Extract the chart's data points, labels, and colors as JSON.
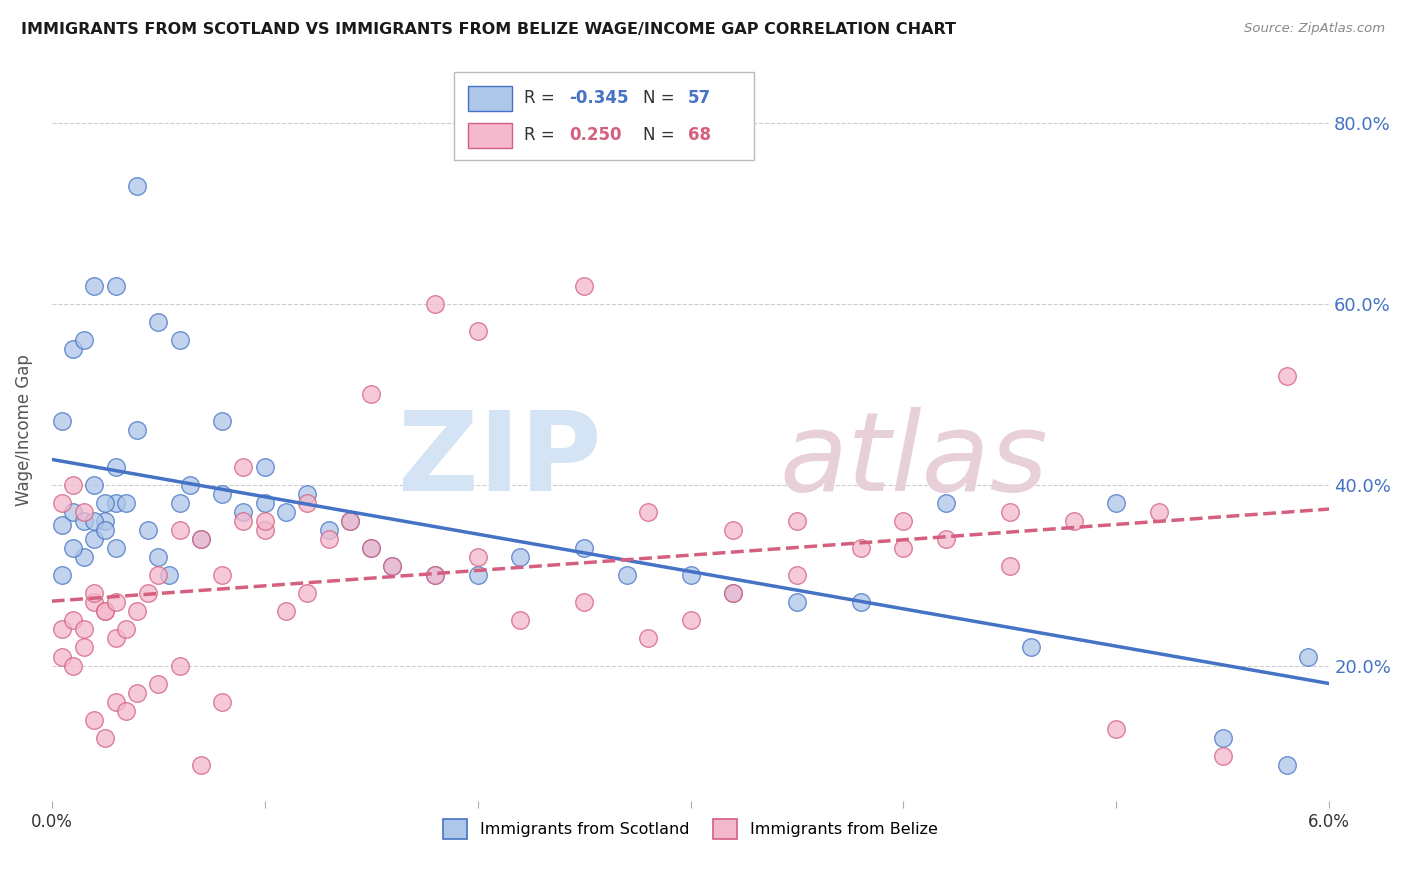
{
  "title": "IMMIGRANTS FROM SCOTLAND VS IMMIGRANTS FROM BELIZE WAGE/INCOME GAP CORRELATION CHART",
  "source": "Source: ZipAtlas.com",
  "ylabel": "Wage/Income Gap",
  "yticks": [
    0.2,
    0.4,
    0.6,
    0.8
  ],
  "ytick_labels": [
    "20.0%",
    "40.0%",
    "60.0%",
    "80.0%"
  ],
  "xmin": 0.0,
  "xmax": 0.06,
  "ymin": 0.05,
  "ymax": 0.87,
  "legend_scotland_R": "-0.345",
  "legend_scotland_N": "57",
  "legend_belize_R": "0.250",
  "legend_belize_N": "68",
  "scotland_color": "#aec6e8",
  "belize_color": "#f4b8cc",
  "scotland_line_color": "#4472c4",
  "belize_line_color": "#d45f7f",
  "scotland_x": [
    0.0005,
    0.001,
    0.0015,
    0.002,
    0.0025,
    0.003,
    0.0005,
    0.001,
    0.0015,
    0.002,
    0.0025,
    0.003,
    0.0005,
    0.001,
    0.0015,
    0.002,
    0.0025,
    0.003,
    0.0035,
    0.004,
    0.0045,
    0.005,
    0.0055,
    0.006,
    0.0065,
    0.007,
    0.008,
    0.009,
    0.01,
    0.011,
    0.012,
    0.013,
    0.014,
    0.015,
    0.016,
    0.018,
    0.02,
    0.022,
    0.025,
    0.027,
    0.03,
    0.032,
    0.035,
    0.038,
    0.042,
    0.046,
    0.05,
    0.055,
    0.058,
    0.059,
    0.002,
    0.003,
    0.004,
    0.005,
    0.006,
    0.008,
    0.01
  ],
  "scotland_y": [
    0.355,
    0.37,
    0.32,
    0.34,
    0.36,
    0.38,
    0.3,
    0.33,
    0.36,
    0.4,
    0.38,
    0.42,
    0.47,
    0.55,
    0.56,
    0.36,
    0.35,
    0.33,
    0.38,
    0.46,
    0.35,
    0.32,
    0.3,
    0.38,
    0.4,
    0.34,
    0.39,
    0.37,
    0.38,
    0.37,
    0.39,
    0.35,
    0.36,
    0.33,
    0.31,
    0.3,
    0.3,
    0.32,
    0.33,
    0.3,
    0.3,
    0.28,
    0.27,
    0.27,
    0.38,
    0.22,
    0.38,
    0.12,
    0.09,
    0.21,
    0.62,
    0.62,
    0.73,
    0.58,
    0.56,
    0.47,
    0.42
  ],
  "belize_x": [
    0.0005,
    0.001,
    0.0015,
    0.002,
    0.0025,
    0.003,
    0.0005,
    0.001,
    0.0015,
    0.002,
    0.0025,
    0.003,
    0.0035,
    0.004,
    0.0045,
    0.005,
    0.006,
    0.007,
    0.008,
    0.009,
    0.01,
    0.011,
    0.012,
    0.013,
    0.014,
    0.015,
    0.016,
    0.018,
    0.02,
    0.022,
    0.025,
    0.028,
    0.03,
    0.032,
    0.035,
    0.038,
    0.04,
    0.042,
    0.045,
    0.048,
    0.05,
    0.052,
    0.055,
    0.058,
    0.0005,
    0.001,
    0.0015,
    0.002,
    0.0025,
    0.003,
    0.0035,
    0.004,
    0.005,
    0.006,
    0.007,
    0.008,
    0.009,
    0.01,
    0.012,
    0.015,
    0.018,
    0.02,
    0.025,
    0.028,
    0.032,
    0.035,
    0.04,
    0.045
  ],
  "belize_y": [
    0.24,
    0.25,
    0.22,
    0.27,
    0.26,
    0.23,
    0.21,
    0.2,
    0.24,
    0.28,
    0.26,
    0.27,
    0.24,
    0.26,
    0.28,
    0.3,
    0.35,
    0.34,
    0.3,
    0.36,
    0.35,
    0.26,
    0.28,
    0.34,
    0.36,
    0.33,
    0.31,
    0.3,
    0.32,
    0.25,
    0.27,
    0.23,
    0.25,
    0.28,
    0.3,
    0.33,
    0.36,
    0.34,
    0.31,
    0.36,
    0.13,
    0.37,
    0.1,
    0.52,
    0.38,
    0.4,
    0.37,
    0.14,
    0.12,
    0.16,
    0.15,
    0.17,
    0.18,
    0.2,
    0.09,
    0.16,
    0.42,
    0.36,
    0.38,
    0.5,
    0.6,
    0.57,
    0.62,
    0.37,
    0.35,
    0.36,
    0.33,
    0.37
  ]
}
